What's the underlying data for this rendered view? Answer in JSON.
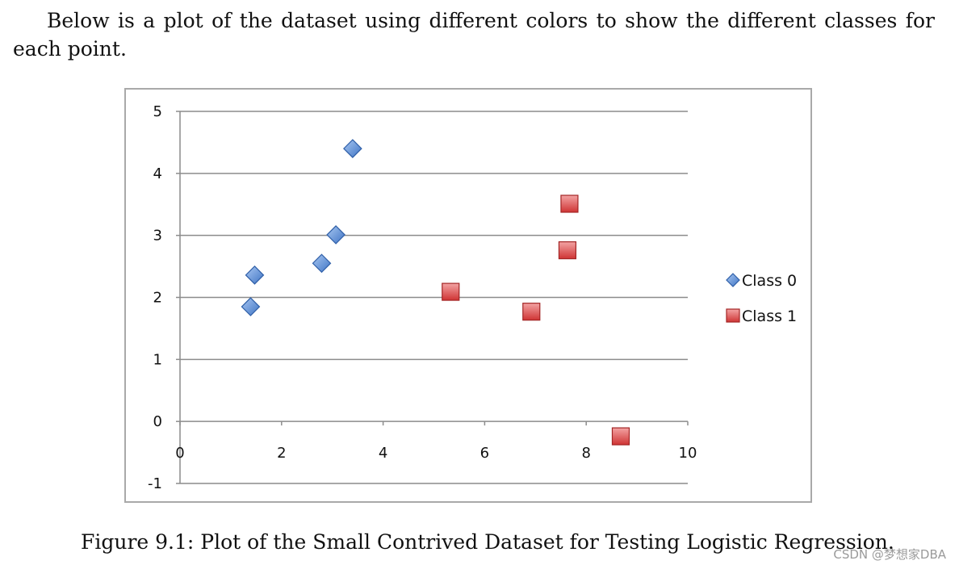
{
  "intro_text": "Below is a plot of the dataset using different colors to show the different classes for each point.",
  "caption": "Figure 9.1: Plot of the Small Contrived Dataset for Testing Logistic Regression.",
  "watermark": "CSDN @梦想家DBA",
  "chart_data": {
    "type": "scatter",
    "title": "",
    "xlabel": "",
    "ylabel": "",
    "xlim": [
      0,
      10
    ],
    "ylim": [
      -1,
      5
    ],
    "x_ticks": [
      "0",
      "2",
      "4",
      "6",
      "8",
      "10"
    ],
    "y_ticks": [
      "5",
      "4",
      "3",
      "2",
      "1",
      "0",
      "-1"
    ],
    "grid": "horizontal",
    "legend_position": "right",
    "series": [
      {
        "name": "Class 0",
        "marker": "diamond",
        "color": "#5b8fd6",
        "points": [
          {
            "x": 1.47,
            "y": 2.36
          },
          {
            "x": 1.39,
            "y": 1.85
          },
          {
            "x": 3.4,
            "y": 4.4
          },
          {
            "x": 2.79,
            "y": 2.55
          },
          {
            "x": 3.07,
            "y": 3.01
          }
        ]
      },
      {
        "name": "Class 1",
        "marker": "square",
        "color": "#e35252",
        "points": [
          {
            "x": 7.63,
            "y": 2.76
          },
          {
            "x": 5.33,
            "y": 2.09
          },
          {
            "x": 6.92,
            "y": 1.77
          },
          {
            "x": 8.68,
            "y": -0.24
          },
          {
            "x": 7.67,
            "y": 3.51
          }
        ]
      }
    ]
  }
}
